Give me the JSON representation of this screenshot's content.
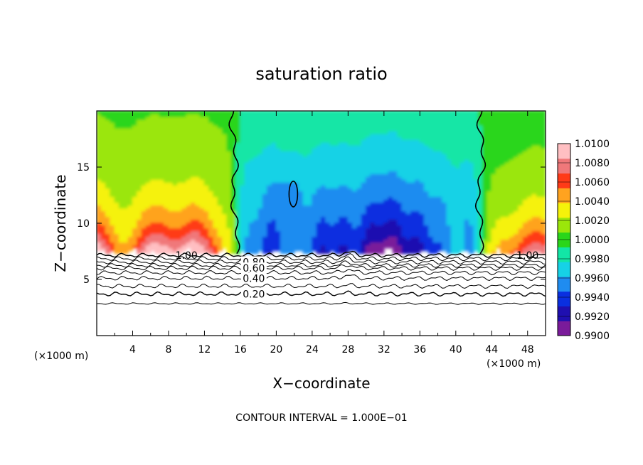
{
  "chart_data": {
    "type": "heatmap",
    "title": "saturation ratio",
    "xlabel": "X−coordinate",
    "ylabel": "Z−coordinate",
    "x_unit_left": "(×1000 m)",
    "x_unit_right": "(×1000 m)",
    "xlim": [
      0,
      50
    ],
    "ylim": [
      0,
      20
    ],
    "x_ticks": [
      "4",
      "8",
      "12",
      "16",
      "20",
      "24",
      "28",
      "32",
      "36",
      "40",
      "44",
      "48"
    ],
    "y_ticks": [
      "5",
      "10",
      "15"
    ],
    "colorbar": {
      "ticks": [
        "1.0100",
        "1.0080",
        "1.0060",
        "1.0040",
        "1.0020",
        "1.0000",
        "0.9980",
        "0.9960",
        "0.9940",
        "0.9920",
        "0.9900"
      ],
      "min": 0.99,
      "max": 1.01,
      "colors": [
        "#7a1b9a",
        "#1f0fb0",
        "#0a2fe0",
        "#1f8cf0",
        "#16d2e6",
        "#12e6a6",
        "#2ad61a",
        "#9be60a",
        "#f5f20a",
        "#ffa31f",
        "#ff3a18",
        "#f0787a",
        "#ffbfc2"
      ]
    },
    "contour_interval_text": "CONTOUR INTERVAL = 1.000E−01",
    "contour_labels": [
      "1.00",
      "1.00",
      "0.80",
      "0.60",
      "0.40",
      "0.20"
    ],
    "contour_levels": [
      1.0,
      0.9,
      0.8,
      0.7,
      0.6,
      0.5,
      0.4,
      0.3,
      0.2,
      0.1
    ],
    "surface_height": 7.3
  }
}
